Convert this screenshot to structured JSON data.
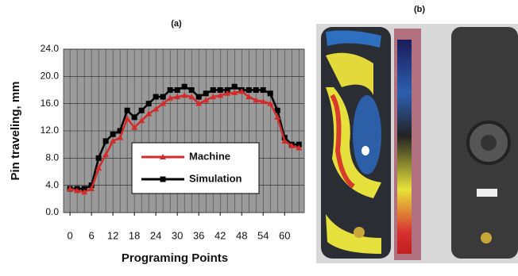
{
  "chart_data": {
    "type": "line",
    "title": "(a)",
    "x_label": "Programing Points",
    "y_label": "Pin traveling, mm",
    "x": [
      0,
      2,
      4,
      6,
      8,
      10,
      12,
      14,
      16,
      18,
      20,
      22,
      24,
      26,
      28,
      30,
      32,
      34,
      36,
      38,
      40,
      42,
      44,
      46,
      48,
      50,
      52,
      54,
      56,
      58,
      60,
      62,
      64
    ],
    "series": [
      {
        "name": "Machine",
        "color": "#d42a2a",
        "marker": "triangle",
        "values": [
          3.5,
          3.2,
          3.0,
          3.5,
          6.5,
          8.5,
          10.5,
          11.0,
          13.8,
          12.5,
          13.5,
          14.5,
          15.2,
          16.0,
          16.8,
          17.0,
          17.2,
          17.0,
          16.0,
          16.5,
          17.0,
          17.2,
          17.5,
          17.6,
          17.8,
          17.0,
          16.5,
          16.3,
          16.0,
          14.0,
          10.5,
          9.8,
          9.5
        ]
      },
      {
        "name": "Simulation",
        "color": "#000000",
        "marker": "square",
        "values": [
          3.5,
          3.5,
          3.5,
          4.0,
          8.0,
          10.5,
          11.5,
          12.0,
          15.0,
          14.0,
          15.0,
          16.0,
          17.0,
          17.0,
          18.0,
          18.0,
          18.5,
          18.0,
          17.0,
          17.5,
          18.0,
          18.0,
          18.0,
          18.5,
          18.0,
          18.0,
          18.0,
          18.0,
          17.5,
          15.0,
          11.0,
          10.0,
          10.0
        ]
      }
    ],
    "xlim": [
      -1.8,
      65.5
    ],
    "xticks": [
      0,
      6,
      12,
      18,
      24,
      30,
      36,
      42,
      48,
      54,
      60
    ],
    "ylim": [
      0,
      24
    ],
    "yticks": [
      {
        "value": 0,
        "label": "0.0"
      },
      {
        "value": 4,
        "label": "4.0"
      },
      {
        "value": 8,
        "label": "8.0"
      },
      {
        "value": 12,
        "label": "12.0"
      },
      {
        "value": 16,
        "label": "16.0"
      },
      {
        "value": 20,
        "label": "20.0"
      },
      {
        "value": 24,
        "label": "24.0"
      }
    ],
    "grid": true,
    "legend": "center"
  },
  "panel_b": {
    "label": "(b)"
  }
}
